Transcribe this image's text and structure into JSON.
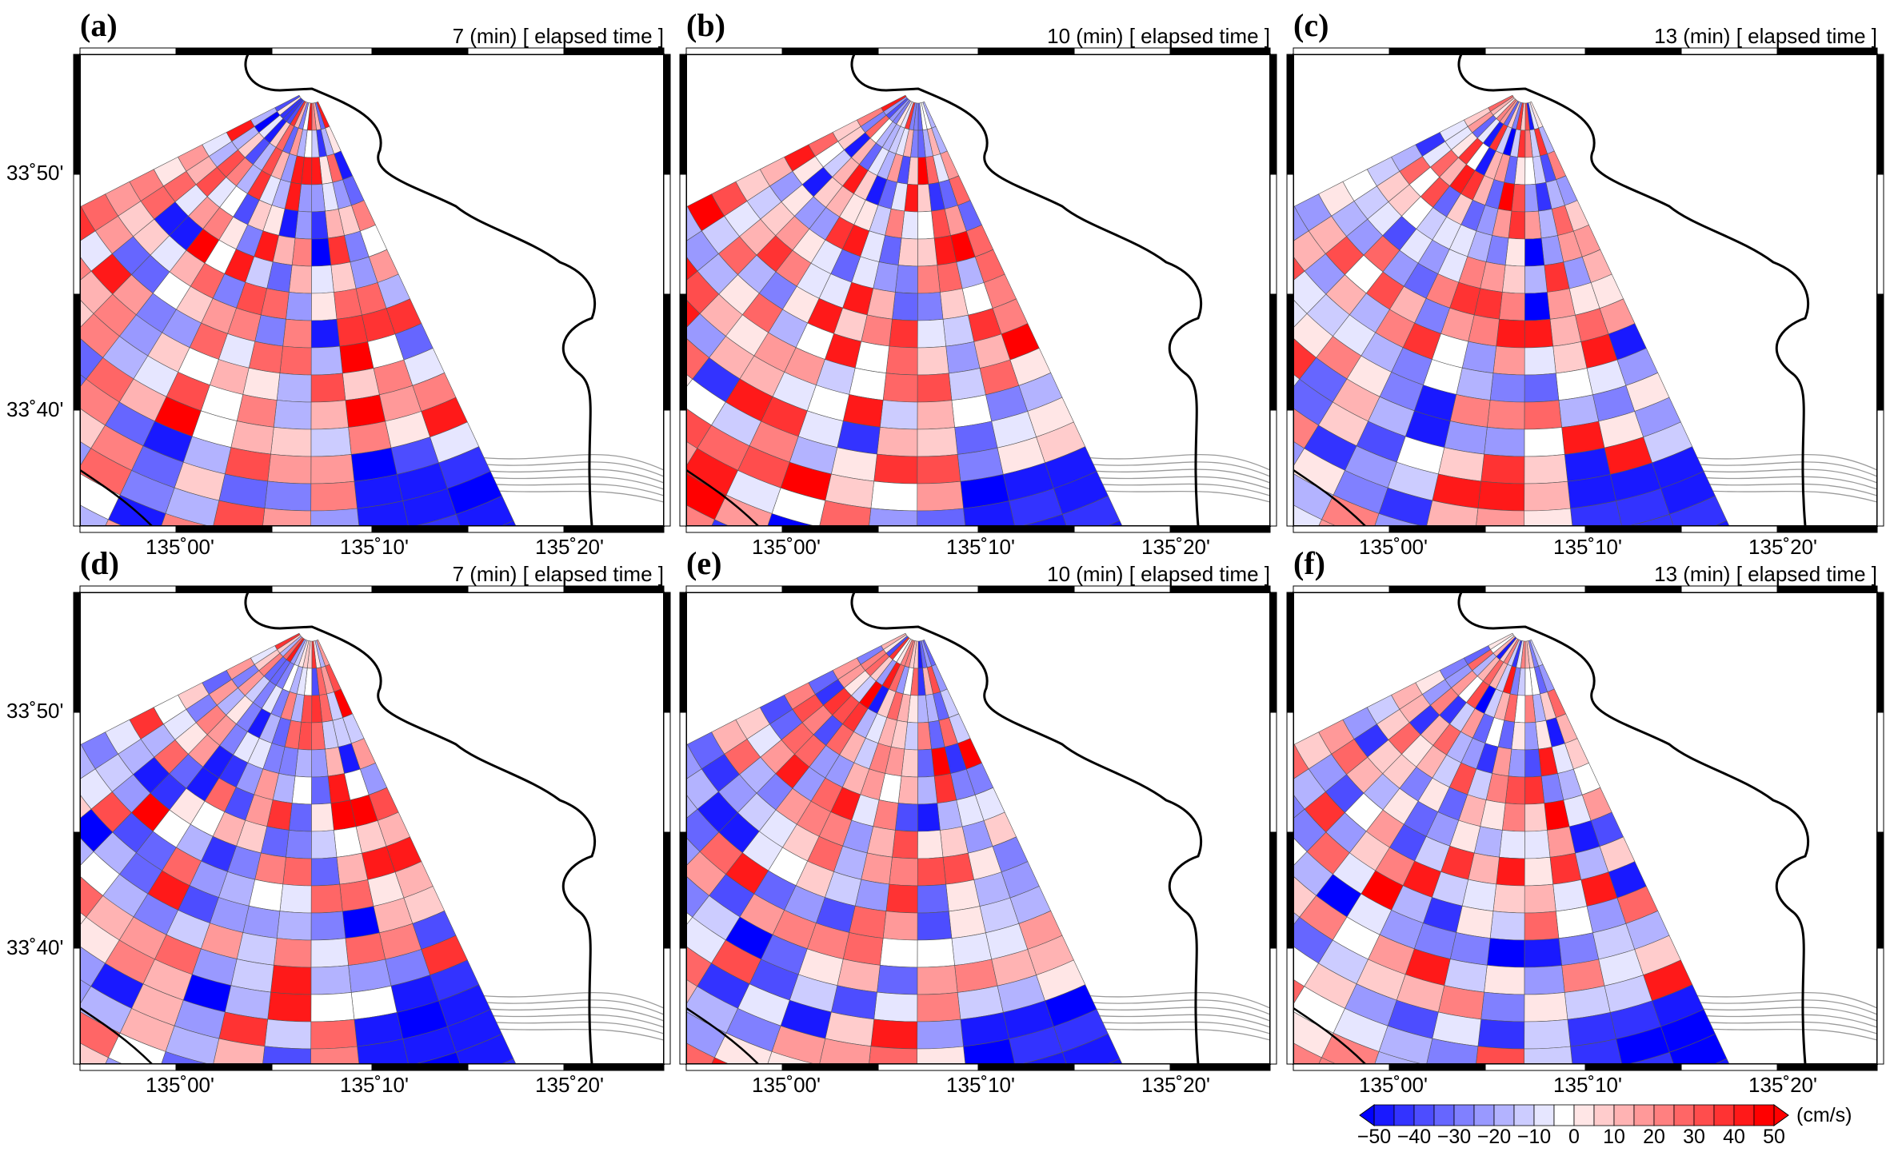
{
  "chart_data": {
    "type": "heatmap",
    "grid_type": "polar-sector radar current map",
    "panels": [
      {
        "label": "(a)",
        "title": "7 (min) [ elapsed time ]"
      },
      {
        "label": "(b)",
        "title": "10 (min) [ elapsed time ]"
      },
      {
        "label": "(c)",
        "title": "13 (min) [ elapsed time ]"
      },
      {
        "label": "(d)",
        "title": "7 (min) [ elapsed time ]"
      },
      {
        "label": "(e)",
        "title": "10 (min) [ elapsed time ]"
      },
      {
        "label": "(f)",
        "title": "13 (min) [ elapsed time ]"
      }
    ],
    "x_ticks": [
      "135˚00'",
      "135˚10'",
      "135˚20'"
    ],
    "y_ticks": [
      "33˚50'",
      "33˚40'"
    ],
    "colorbar": {
      "unit": "(cm/s)",
      "range": [
        -50,
        50
      ],
      "step": 5,
      "tick_labels": [
        "−50",
        "−40",
        "−30",
        "−20",
        "−10",
        "0",
        "10",
        "20",
        "30",
        "40",
        "50"
      ],
      "negative_color": "#0000ff",
      "zero_color": "#ffffff",
      "positive_color": "#ff0000"
    },
    "radial_rings": 18,
    "angular_sectors": 14,
    "seed_base": 7
  }
}
